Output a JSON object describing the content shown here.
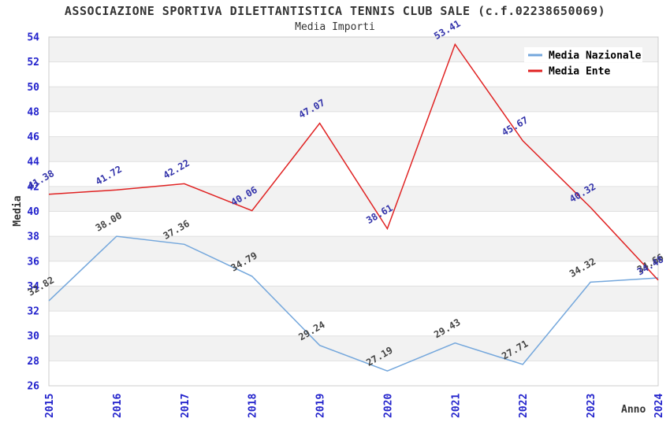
{
  "chart_data": {
    "type": "line",
    "title": "ASSOCIAZIONE SPORTIVA DILETTANTISTICA TENNIS CLUB SALE (c.f.02238650069)",
    "subtitle": "Media Importi",
    "xlabel": "Anno",
    "ylabel": "Media",
    "x": [
      2015,
      2016,
      2017,
      2018,
      2019,
      2020,
      2021,
      2022,
      2023,
      2024
    ],
    "ylim": [
      26,
      54
    ],
    "ytick_step": 2,
    "grid": true,
    "alternating_bands": true,
    "legend_position": "top-right",
    "series": [
      {
        "name": "Media Nazionale",
        "color": "#74a7dc",
        "label_color": "#444444",
        "values": [
          32.82,
          38.0,
          37.36,
          34.79,
          29.24,
          27.19,
          29.43,
          27.71,
          34.32,
          34.66
        ]
      },
      {
        "name": "Media Ente",
        "color": "#e02222",
        "label_color": "#3333aa",
        "values": [
          41.38,
          41.72,
          42.22,
          40.06,
          47.07,
          38.61,
          53.41,
          45.67,
          40.32,
          34.48
        ]
      }
    ],
    "style": {
      "tick_label_color": "#2222cc",
      "band_color": "#f2f2f2",
      "gridline_color": "#e0e0e0",
      "plot_border_color": "#cccccc",
      "legend_text_color": "#000000",
      "legend_bg_color": "#ffffff"
    }
  }
}
